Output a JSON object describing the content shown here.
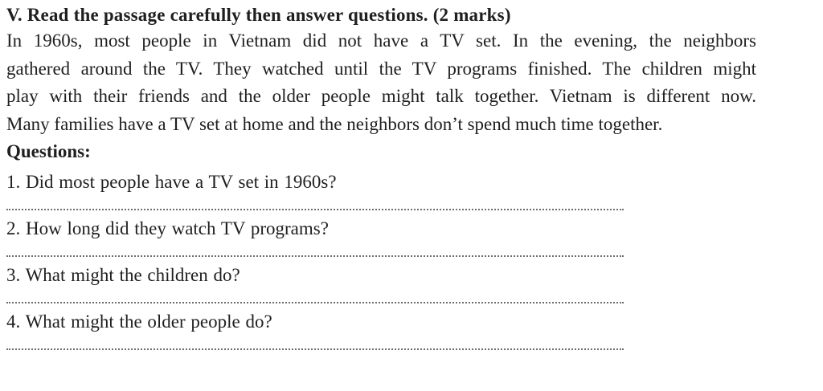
{
  "doc": {
    "title": "V. Read the passage carefully then answer questions. (2 marks)",
    "passage_lines": [
      "In 1960s, most people in Vietnam did not have a TV set. In the evening, the neighbors",
      "gathered around the TV. They watched until the TV programs finished. The children might",
      "play with their friends and the older people might talk together. Vietnam is different now.",
      "Many families have a TV set at home and the neighbors don’t spend much time together."
    ],
    "questions_heading": "Questions:",
    "questions": [
      {
        "label": "1. Did most people have a TV set in 1960s?"
      },
      {
        "label": "2. How long did they watch TV programs?"
      },
      {
        "label": "3. What might the children do?"
      },
      {
        "label": "4. What might the older people do?"
      }
    ],
    "colors": {
      "text": "#1f1f1f",
      "answer_dots": "#6e6e6e",
      "background": "#ffffff"
    }
  }
}
